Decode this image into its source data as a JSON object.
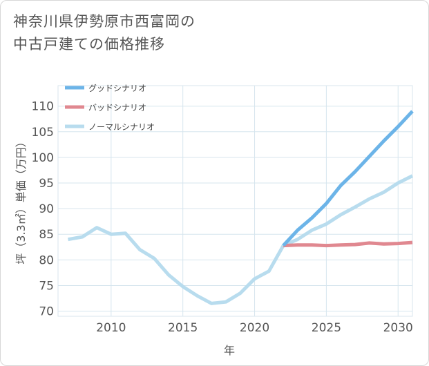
{
  "title_lines": [
    "神奈川県伊勢原市西富岡の",
    "中古戸建ての価格推移"
  ],
  "chart_data": {
    "type": "line",
    "xlabel": "年",
    "ylabel": "坪（3.3㎡）単価（万円）",
    "xlim": [
      2006.3,
      2031
    ],
    "ylim": [
      69,
      114
    ],
    "xticks": [
      2010,
      2015,
      2020,
      2025,
      2030
    ],
    "yticks": [
      70,
      75,
      80,
      85,
      90,
      95,
      100,
      105,
      110
    ],
    "grid": true,
    "legend_position": "top-left",
    "series": [
      {
        "name": "グッドシナリオ",
        "color": "#6cb4e8",
        "x": [
          2022,
          2023,
          2024,
          2025,
          2026,
          2027,
          2028,
          2029,
          2030,
          2031
        ],
        "values": [
          82.8,
          85.8,
          88.2,
          91.0,
          94.5,
          97.2,
          100.2,
          103.2,
          106.0,
          109.0
        ]
      },
      {
        "name": "バッドシナリオ",
        "color": "#e08890",
        "x": [
          2022,
          2023,
          2024,
          2025,
          2026,
          2027,
          2028,
          2029,
          2030,
          2031
        ],
        "values": [
          82.8,
          82.9,
          82.9,
          82.8,
          82.9,
          83.0,
          83.3,
          83.1,
          83.2,
          83.4
        ]
      },
      {
        "name": "ノーマルシナリオ",
        "color": "#b8dcee",
        "x": [
          2007,
          2008,
          2009,
          2010,
          2011,
          2012,
          2013,
          2014,
          2015,
          2016,
          2017,
          2018,
          2019,
          2020,
          2021,
          2022,
          2023,
          2024,
          2025,
          2026,
          2027,
          2028,
          2029,
          2030,
          2031
        ],
        "values": [
          84.0,
          84.5,
          86.3,
          85.0,
          85.2,
          82.0,
          80.3,
          77.1,
          74.8,
          73.0,
          71.5,
          71.8,
          73.5,
          76.3,
          77.8,
          82.8,
          84.0,
          85.8,
          87.0,
          88.8,
          90.3,
          91.9,
          93.2,
          95.0,
          96.4
        ]
      }
    ]
  }
}
